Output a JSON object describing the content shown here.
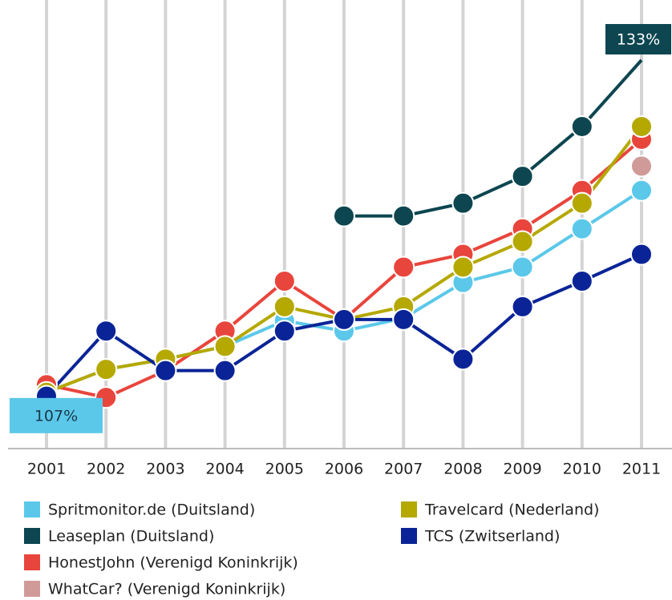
{
  "chart_data": {
    "type": "line",
    "categories": [
      "2001",
      "2002",
      "2003",
      "2004",
      "2005",
      "2006",
      "2007",
      "2008",
      "2009",
      "2010",
      "2011"
    ],
    "ylim": [
      102.6,
      137.7
    ],
    "grid": true,
    "series": [
      {
        "name": "Spritmonitor.de (Duitsland)",
        "color": "#5bc8ea",
        "values": [
          107,
          108.8,
          109.6,
          110.6,
          112.6,
          111.8,
          112.8,
          115.6,
          116.8,
          119.8,
          122.8
        ],
        "value_labels": [
          "107%",
          null,
          null,
          null,
          null,
          null,
          null,
          null,
          null,
          null,
          null
        ]
      },
      {
        "name": "Leaseplan (Duitsland)",
        "color": "#0d4650",
        "values": [
          null,
          null,
          null,
          null,
          null,
          120.8,
          120.8,
          121.8,
          123.9,
          127.8,
          133
        ],
        "value_labels": [
          null,
          null,
          null,
          null,
          null,
          null,
          null,
          null,
          null,
          null,
          "133%"
        ]
      },
      {
        "name": "HonestJohn (Verenigd Koninkrijk)",
        "color": "#e8453c",
        "values": [
          107.6,
          106.6,
          108.7,
          111.8,
          115.7,
          112.7,
          116.8,
          117.8,
          119.8,
          122.8,
          126.8
        ]
      },
      {
        "name": "WhatCar? (Verenigd Koninkrijk)",
        "color": "#d09a98",
        "values": [
          null,
          null,
          null,
          null,
          null,
          null,
          null,
          null,
          null,
          null,
          124.7
        ]
      },
      {
        "name": "Travelcard (Nederland)",
        "color": "#b5a800",
        "values": [
          107,
          108.8,
          109.6,
          110.6,
          113.7,
          112.7,
          113.7,
          116.8,
          118.8,
          121.8,
          127.8
        ]
      },
      {
        "name": "TCS (Zwitserland)",
        "color": "#0a2497",
        "values": [
          106.7,
          111.8,
          108.7,
          108.7,
          111.8,
          112.7,
          112.7,
          109.6,
          113.7,
          115.7,
          117.8
        ]
      }
    ]
  }
}
